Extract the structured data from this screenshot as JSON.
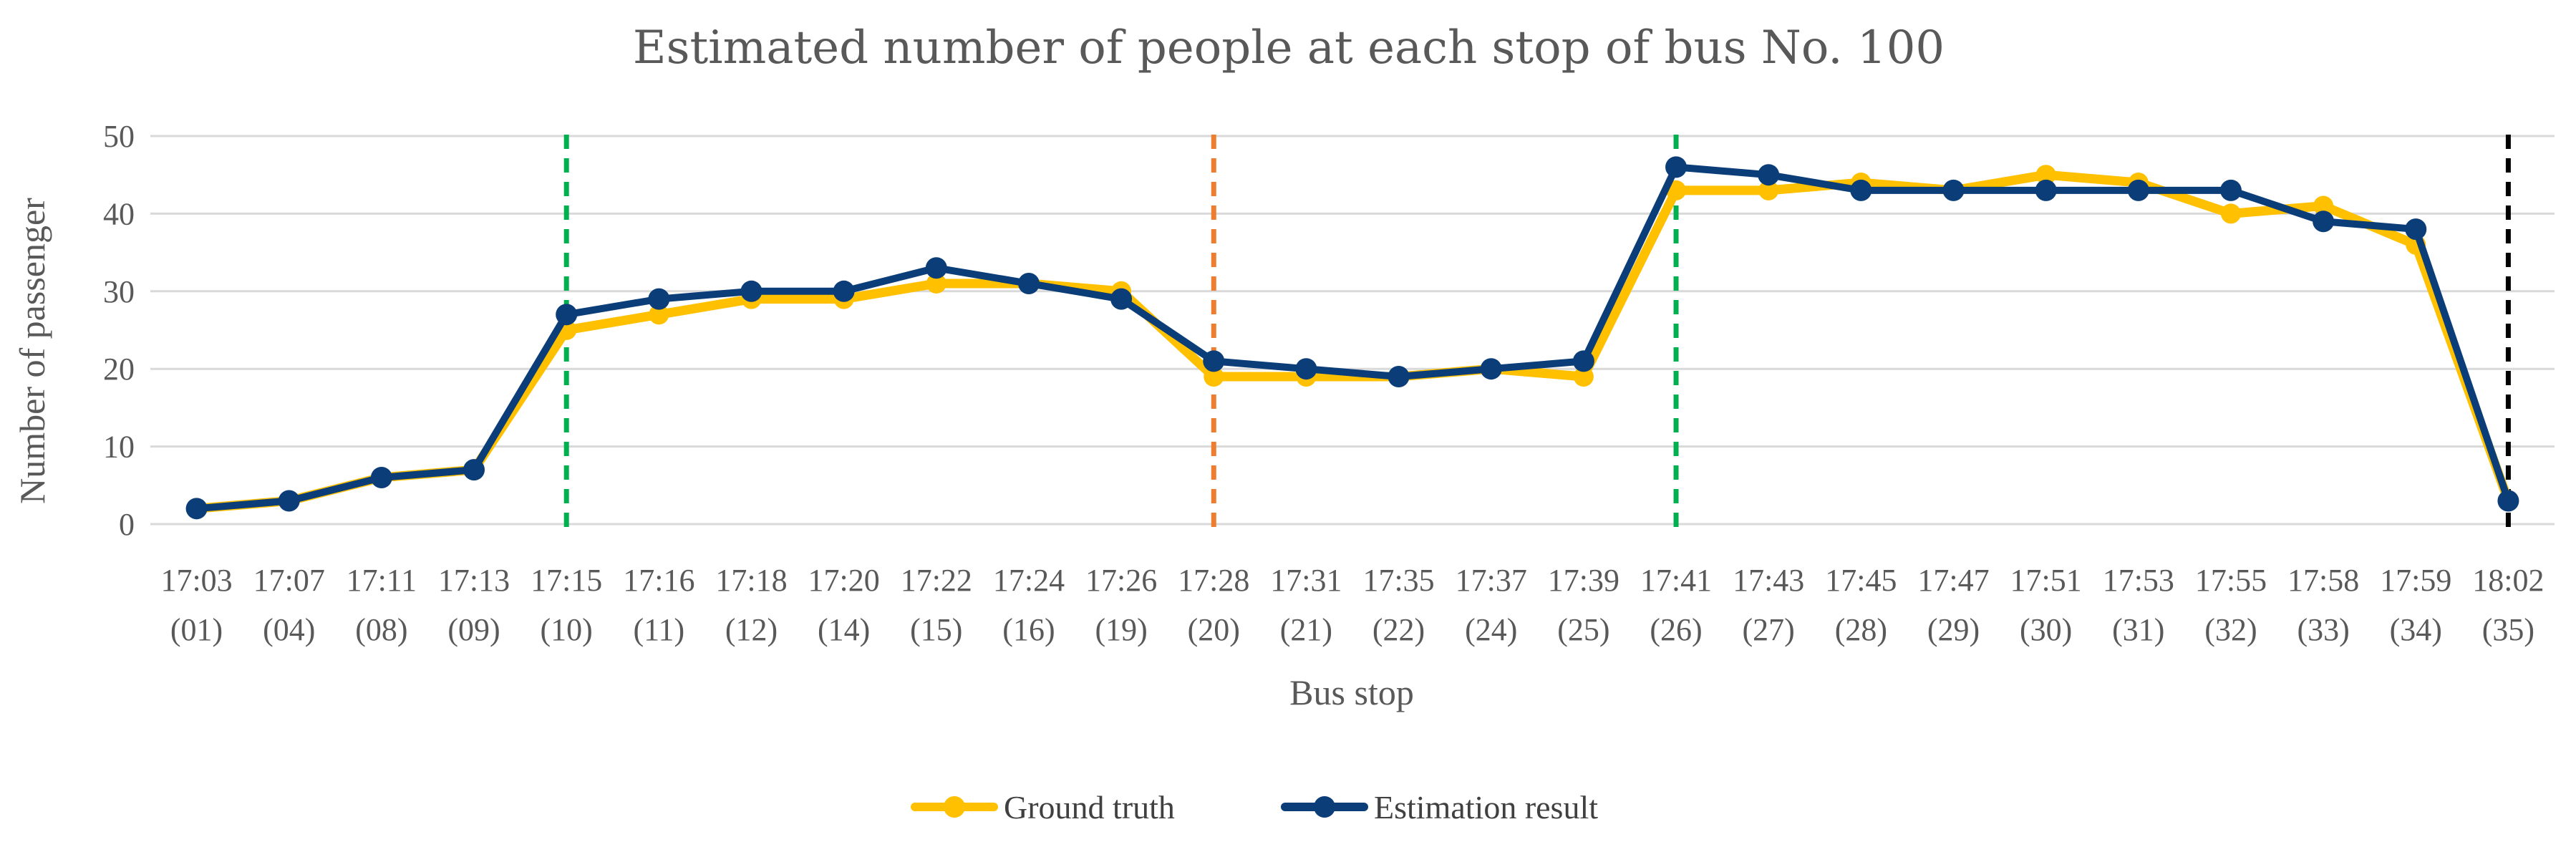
{
  "chart_data": {
    "type": "line",
    "title": "Estimated number of people at each stop of bus No. 100",
    "xlabel": "Bus stop",
    "ylabel": "Number of passenger",
    "ylim": [
      0,
      50
    ],
    "yticks": [
      0,
      10,
      20,
      30,
      40,
      50
    ],
    "grid": true,
    "legend_position": "bottom",
    "categories": [
      {
        "time": "17:03",
        "stop": "(01)"
      },
      {
        "time": "17:07",
        "stop": "(04)"
      },
      {
        "time": "17:11",
        "stop": "(08)"
      },
      {
        "time": "17:13",
        "stop": "(09)"
      },
      {
        "time": "17:15",
        "stop": "(10)"
      },
      {
        "time": "17:16",
        "stop": "(11)"
      },
      {
        "time": "17:18",
        "stop": "(12)"
      },
      {
        "time": "17:20",
        "stop": "(14)"
      },
      {
        "time": "17:22",
        "stop": "(15)"
      },
      {
        "time": "17:24",
        "stop": "(16)"
      },
      {
        "time": "17:26",
        "stop": "(19)"
      },
      {
        "time": "17:28",
        "stop": "(20)"
      },
      {
        "time": "17:31",
        "stop": "(21)"
      },
      {
        "time": "17:35",
        "stop": "(22)"
      },
      {
        "time": "17:37",
        "stop": "(24)"
      },
      {
        "time": "17:39",
        "stop": "(25)"
      },
      {
        "time": "17:41",
        "stop": "(26)"
      },
      {
        "time": "17:43",
        "stop": "(27)"
      },
      {
        "time": "17:45",
        "stop": "(28)"
      },
      {
        "time": "17:47",
        "stop": "(29)"
      },
      {
        "time": "17:51",
        "stop": "(30)"
      },
      {
        "time": "17:53",
        "stop": "(31)"
      },
      {
        "time": "17:55",
        "stop": "(32)"
      },
      {
        "time": "17:58",
        "stop": "(33)"
      },
      {
        "time": "17:59",
        "stop": "(34)"
      },
      {
        "time": "18:02",
        "stop": "(35)"
      }
    ],
    "series": [
      {
        "name": "Ground truth",
        "color": "#FFC000",
        "values": [
          2,
          3,
          6,
          7,
          25,
          27,
          29,
          29,
          31,
          31,
          30,
          19,
          19,
          19,
          20,
          19,
          43,
          43,
          44,
          43,
          45,
          44,
          40,
          41,
          36,
          3
        ]
      },
      {
        "name": "Estimation result",
        "color": "#0B3D78",
        "values": [
          2,
          3,
          6,
          7,
          27,
          29,
          30,
          30,
          33,
          31,
          29,
          21,
          20,
          19,
          20,
          21,
          46,
          45,
          43,
          43,
          43,
          43,
          43,
          39,
          38,
          3
        ]
      }
    ],
    "vertical_markers": [
      {
        "category_index": 4,
        "color": "#00B050",
        "style": "dashed"
      },
      {
        "category_index": 11,
        "color": "#ED7D31",
        "style": "dashed"
      },
      {
        "category_index": 16,
        "color": "#00B050",
        "style": "dashed"
      },
      {
        "category_index": 25,
        "color": "#000000",
        "style": "dashed"
      }
    ]
  }
}
